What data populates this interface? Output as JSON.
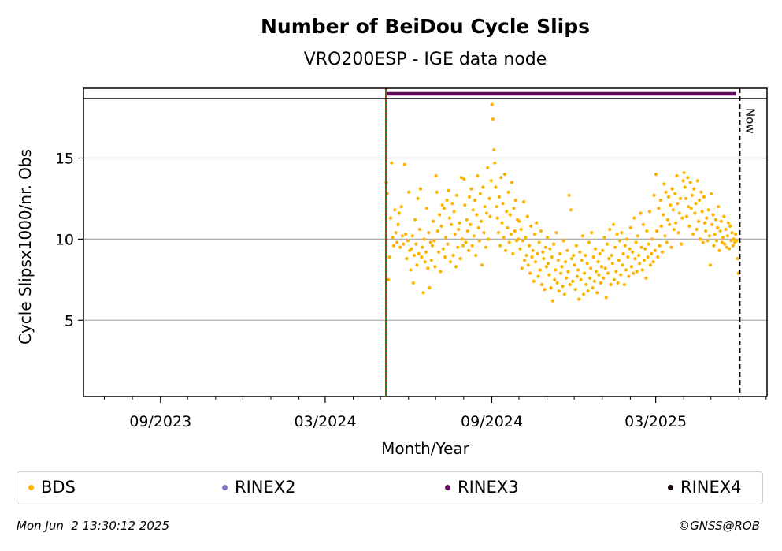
{
  "chart_data": {
    "type": "scatter",
    "title": "Number of BeiDou Cycle Slips",
    "subtitle": "VRO200ESP - IGE data node",
    "xlabel": "Month/Year",
    "ylabel": "Cycle Slipsx1000/nr. Obs",
    "x_ticks": [
      "09/2023",
      "03/2024",
      "09/2024",
      "03/2025"
    ],
    "y_ticks": [
      5,
      10,
      15
    ],
    "ylim": [
      0.3,
      19.3
    ],
    "xlim": [
      "2023-06-08",
      "2025-07-02"
    ],
    "grid": "horizontal",
    "now_label": "Now",
    "now_date": "2025-06-02",
    "data_start": "2024-05-07",
    "data_end": "2025-06-01",
    "rinex3_strip": {
      "start": "2024-05-07",
      "end": "2025-05-29",
      "color": "#5c0a5c"
    },
    "series": [
      {
        "name": "BDS",
        "color": "#ffb300",
        "monthly": [
          {
            "month": "2024-05",
            "values": [
              13.5,
              12.8,
              7.5,
              8.9,
              11.3,
              14.7,
              10.1,
              9.6,
              11.8,
              10.4,
              9.8,
              10.9,
              11.6,
              9.5,
              12.0,
              10.2,
              9.7,
              14.6,
              10.3,
              8.8,
              9.9
            ]
          },
          {
            "month": "2024-06",
            "values": [
              12.9,
              9.3,
              8.1,
              9.4,
              10.2,
              7.3,
              9.0,
              11.2,
              9.7,
              8.4,
              12.5,
              9.1,
              10.6,
              13.1,
              8.9,
              9.5,
              6.7,
              10.0,
              8.6,
              9.2,
              11.9,
              8.2,
              10.4,
              7.0,
              9.8,
              8.7,
              9.6,
              11.1,
              9.9,
              8.3
            ]
          },
          {
            "month": "2024-07",
            "values": [
              13.9,
              12.9,
              10.5,
              9.2,
              11.5,
              8.0,
              10.8,
              12.1,
              9.4,
              11.9,
              8.9,
              10.1,
              12.4,
              9.7,
              13.0,
              11.3,
              8.6,
              10.9,
              12.2,
              9.0,
              11.7,
              10.3,
              8.3,
              12.7,
              9.5,
              10.6,
              11.0,
              8.8,
              13.8,
              10.0,
              9.6
            ]
          },
          {
            "month": "2024-08",
            "values": [
              13.7,
              12.1,
              9.8,
              11.2,
              10.5,
              9.3,
              12.6,
              10.9,
              13.1,
              9.6,
              11.8,
              10.2,
              12.4,
              9.0,
              11.5,
              13.9,
              10.7,
              9.9,
              12.8,
              11.1,
              8.4,
              13.2,
              10.4,
              12.0,
              9.5,
              11.6,
              14.4,
              10.0,
              12.5,
              11.4,
              13.6
            ]
          },
          {
            "month": "2024-09",
            "values": [
              18.3,
              17.4,
              15.5,
              14.7,
              13.2,
              12.0,
              11.3,
              10.4,
              12.6,
              9.6,
              13.8,
              11.0,
              12.2,
              10.1,
              14.0,
              9.3,
              11.7,
              10.7,
              12.9,
              9.8,
              11.5,
              10.3,
              13.5,
              9.1,
              11.9,
              10.5,
              12.4,
              9.9,
              11.2,
              10.0
            ]
          },
          {
            "month": "2024-10",
            "values": [
              11.1,
              9.4,
              10.6,
              8.2,
              9.9,
              12.3,
              8.7,
              10.1,
              9.0,
              11.4,
              8.4,
              9.6,
              7.9,
              10.8,
              8.9,
              9.3,
              7.4,
              10.3,
              8.6,
              11.0,
              9.1,
              7.7,
              9.8,
              8.1,
              10.5,
              7.2,
              9.2,
              8.8,
              6.9,
              9.5,
              8.3
            ]
          },
          {
            "month": "2024-11",
            "values": [
              10.1,
              8.5,
              7.8,
              9.4,
              7.0,
              8.9,
              6.2,
              9.7,
              7.5,
              8.1,
              10.4,
              7.3,
              8.7,
              6.8,
              9.1,
              7.9,
              8.3,
              7.1,
              9.9,
              6.6,
              8.6,
              7.6,
              9.3,
              8.0,
              12.7,
              7.2,
              11.8,
              8.8,
              7.4,
              9.0
            ]
          },
          {
            "month": "2024-12",
            "values": [
              8.4,
              6.9,
              9.6,
              7.7,
              8.1,
              6.3,
              9.2,
              7.5,
              8.7,
              10.2,
              6.6,
              7.9,
              9.0,
              7.2,
              8.5,
              6.8,
              9.8,
              7.6,
              8.2,
              10.4,
              7.0,
              8.9,
              7.4,
              9.4,
              8.0,
              6.7,
              8.6,
              7.8,
              9.1,
              7.3,
              8.3
            ]
          },
          {
            "month": "2025-01",
            "values": [
              9.3,
              7.6,
              10.1,
              8.2,
              6.4,
              9.7,
              7.9,
              8.8,
              10.6,
              7.2,
              9.0,
              8.5,
              10.9,
              7.5,
              9.5,
              8.0,
              10.3,
              7.3,
              8.7,
              9.9,
              7.8,
              10.4,
              8.4,
              9.1,
              7.2,
              9.6,
              8.1,
              10.0,
              8.9,
              7.7,
              9.4
            ]
          },
          {
            "month": "2025-02",
            "values": [
              10.7,
              8.3,
              9.2,
              7.9,
              11.3,
              8.8,
              9.8,
              8.0,
              10.2,
              9.0,
              8.5,
              11.6,
              9.5,
              8.1,
              10.9,
              8.7,
              9.4,
              7.6,
              10.5,
              8.9,
              9.7,
              11.7,
              8.4,
              9.1,
              10.0,
              8.6,
              12.7,
              9.3
            ]
          },
          {
            "month": "2025-03",
            "values": [
              14.0,
              10.5,
              8.9,
              11.9,
              9.6,
              12.4,
              10.8,
              9.2,
              11.5,
              13.4,
              10.2,
              12.9,
              9.8,
              11.2,
              12.6,
              10.9,
              12.1,
              9.5,
              13.1,
              11.8,
              10.6,
              12.8,
              11.0,
              13.9,
              12.2,
              10.4,
              11.6,
              12.5,
              9.7,
              11.3,
              13.6
            ]
          },
          {
            "month": "2025-04",
            "values": [
              14.1,
              13.2,
              12.5,
              11.4,
              13.8,
              12.0,
              10.8,
              13.5,
              11.9,
              12.7,
              10.3,
              13.1,
              11.6,
              12.2,
              10.6,
              13.6,
              11.1,
              12.4,
              10.0,
              12.9,
              11.7,
              9.8,
              12.6,
              11.0,
              10.5,
              11.3,
              9.9,
              11.8,
              10.2,
              8.4
            ]
          },
          {
            "month": "2025-05",
            "values": [
              12.8,
              10.9,
              11.5,
              9.6,
              10.3,
              11.2,
              9.9,
              10.7,
              12.0,
              9.3,
              10.5,
              11.1,
              9.8,
              10.1,
              11.4,
              9.7,
              10.6,
              9.5,
              10.2,
              11.0,
              9.4,
              10.8,
              9.9,
              10.4,
              9.6,
              10.0,
              9.8,
              10.3,
              9.9,
              8.8,
              7.9
            ]
          }
        ]
      },
      {
        "name": "RINEX2",
        "color": "#8079c0"
      },
      {
        "name": "RINEX3",
        "color": "#6e0b68"
      },
      {
        "name": "RINEX4",
        "color": "#1a0514"
      }
    ]
  },
  "footer": {
    "timestamp": "Mon Jun  2 13:30:12 2025",
    "copyright": "©GNSS@ROB"
  }
}
